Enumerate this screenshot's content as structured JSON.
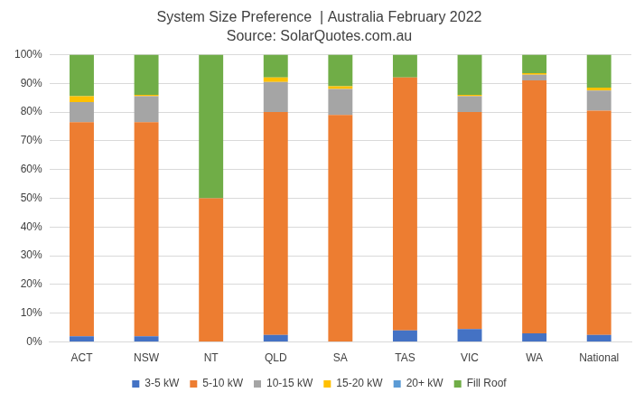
{
  "chart_data": {
    "type": "bar",
    "title": "System Size Preference  | Australia February 2022",
    "subtitle": "Source: SolarQuotes.com.au",
    "categories": [
      "ACT",
      "NSW",
      "NT",
      "QLD",
      "SA",
      "TAS",
      "VIC",
      "WA",
      "National"
    ],
    "series": [
      {
        "name": "3-5 kW",
        "color": "#4472c4",
        "values": [
          2,
          2,
          0,
          2.5,
          0,
          4,
          4.5,
          3,
          2.5
        ]
      },
      {
        "name": "5-10 kW",
        "color": "#ed7d31",
        "values": [
          74.5,
          74.5,
          50,
          77.5,
          79,
          88,
          75.5,
          88,
          78
        ]
      },
      {
        "name": "10-15 kW",
        "color": "#a5a5a5",
        "values": [
          7,
          9,
          0,
          10.5,
          9,
          0,
          5.5,
          2,
          7
        ]
      },
      {
        "name": "15-20 kW",
        "color": "#ffc000",
        "values": [
          2,
          0.5,
          0,
          1.5,
          1,
          0,
          0.5,
          0.5,
          1
        ]
      },
      {
        "name": "20+ kW",
        "color": "#5b9bd5",
        "values": [
          0,
          0,
          0,
          0,
          0,
          0,
          0,
          0,
          0
        ]
      },
      {
        "name": "Fill Roof",
        "color": "#70ad47",
        "values": [
          14.5,
          14,
          50,
          8,
          11,
          8,
          14,
          6.5,
          11.5
        ]
      }
    ],
    "stacked": true,
    "ylim": [
      0,
      100
    ],
    "yticks": [
      {
        "value": 0,
        "label": "0%"
      },
      {
        "value": 10,
        "label": "10%"
      },
      {
        "value": 20,
        "label": "20%"
      },
      {
        "value": 30,
        "label": "30%"
      },
      {
        "value": 40,
        "label": "40%"
      },
      {
        "value": 50,
        "label": "50%"
      },
      {
        "value": 60,
        "label": "60%"
      },
      {
        "value": 70,
        "label": "70%"
      },
      {
        "value": 80,
        "label": "80%"
      },
      {
        "value": 90,
        "label": "90%"
      },
      {
        "value": 100,
        "label": "100%"
      }
    ],
    "grid": true,
    "legend": "bottom"
  }
}
